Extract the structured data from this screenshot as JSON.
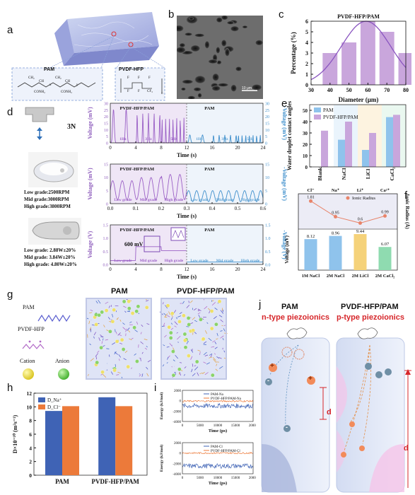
{
  "panels": {
    "a": {
      "letter": "a",
      "pam_label": "PAM",
      "pam_groups": [
        "CH₂",
        "CH",
        "CH₂",
        "CH",
        "CONH₂",
        "CONH₂"
      ],
      "pvdf_label": "PVDF-HFP",
      "pvdf_atoms": [
        "F",
        "F",
        "F",
        "F",
        "F",
        "CF₃"
      ],
      "subscripts": [
        "x",
        "y",
        "n"
      ]
    },
    "b": {
      "letter": "b",
      "scalebar": "10 μm"
    },
    "c": {
      "letter": "c",
      "chart_data": {
        "type": "bar",
        "title": "PVDF-HFP/PAM",
        "xlabel": "Diameter (μm)",
        "ylabel": "Percentage (%)",
        "categories": [
          40,
          50,
          60,
          70,
          80
        ],
        "values": [
          3,
          4,
          6,
          5,
          3
        ],
        "xlim": [
          30,
          80
        ],
        "ylim": [
          0,
          6
        ],
        "xticks": [
          "30",
          "40",
          "50",
          "60",
          "70",
          "80"
        ],
        "yticks": [
          "0",
          "1",
          "2",
          "3",
          "4",
          "5",
          "6"
        ],
        "bar_color": "#c9a6dc",
        "fit_color": "#8a55c0",
        "fit": "gaussian"
      }
    },
    "d": {
      "letter": "d",
      "load_label": "3N",
      "speed_lines": [
        "Low grade:2500RPM",
        "Mid grade:3000RPM",
        "High grade:3800RPM"
      ],
      "power_lines": [
        "Low grade:  2.88W±20%",
        "Mid grade:  3.84W±20%",
        "High grade: 4.80W±20%"
      ],
      "charts": [
        {
          "type": "line",
          "left_label": "PVDF-HFP/PAM",
          "right_label": "PAM",
          "ylabel_left": "Voltage (mV)",
          "ylabel_right": "-Voltage (mV)",
          "xlabel": "Time (s)",
          "xticks": [
            "0",
            "4",
            "8",
            "12",
            "16",
            "20",
            "24"
          ],
          "xlim": [
            0,
            24
          ],
          "ylim": [
            0,
            30
          ],
          "yticks": [
            "0",
            "5",
            "10",
            "15",
            "20",
            "25",
            "30"
          ],
          "freq_labels": [
            "1Hz",
            "3Hz",
            "5Hz",
            "1Hz",
            "3Hz",
            "5Hz"
          ]
        },
        {
          "type": "line",
          "left_label": "PVDF-HFP/PAM",
          "right_label": "PAM",
          "ylabel_left": "Voltage (mV)",
          "ylabel_right": "-Voltage (mV)",
          "xlabel": "Time (s)",
          "xticks": [
            "0.0",
            "0.1",
            "0.2",
            "0.3",
            "0.4",
            "0.5",
            "0.6"
          ],
          "xlim": [
            0,
            0.6
          ],
          "ylim": [
            0,
            15
          ],
          "yticks": [
            "0",
            "5",
            "10",
            "15"
          ],
          "grade_labels": [
            "Low grade",
            "Mid grade",
            "High grade",
            "Low grade",
            "Mid grade",
            "High grade"
          ]
        },
        {
          "type": "line",
          "left_label": "PVDF-HFP/PAM",
          "right_label": "PAM",
          "ylabel_left": "Voltage (V)",
          "ylabel_right": "-Voltage (V)",
          "xlabel": "Time (s)",
          "xticks": [
            "0",
            "4",
            "8",
            "12",
            "16",
            "20",
            "24"
          ],
          "xlim": [
            0,
            24
          ],
          "ylim": [
            0.0,
            1.5
          ],
          "yticks": [
            "0.0",
            "0.5",
            "1.0",
            "1.5"
          ],
          "annotation": "600 mV",
          "grade_labels": [
            "Low grade",
            "Mid grade",
            "High grade",
            "Low grade",
            "Mid grade",
            "High grade"
          ]
        }
      ]
    },
    "e": {
      "letter": "e",
      "chart_data": {
        "type": "bar",
        "ylabel": "Water droplet contact angles",
        "categories": [
          "Blank",
          "NaCl",
          "LiCl",
          "CaCl₂"
        ],
        "yticks": [
          "0",
          "10",
          "20",
          "30",
          "40",
          "50"
        ],
        "ylim": [
          0,
          55
        ],
        "series": [
          {
            "name": "PAM",
            "values": [
              0,
              24,
              15,
              44
            ],
            "color": "#8fc3ec"
          },
          {
            "name": "PVDF-HFP/PAM",
            "values": [
              32,
              40,
              30,
              46
            ],
            "color": "#c9a6dc"
          }
        ]
      }
    },
    "f": {
      "letter": "f",
      "chart_data": {
        "type": "bar",
        "ylabel": "Voltage (mV)",
        "ylabel_right": "Ionic Radius (Å)",
        "categories": [
          "1M NaCl",
          "2M NaCl",
          "2M LiCl",
          "2M CaCl₂"
        ],
        "values": [
          8.12,
          8.96,
          9.44,
          6.07
        ],
        "value_labels": [
          "8.12",
          "8.96",
          "9.44",
          "6.07"
        ],
        "bar_colors": [
          "#8fc3ec",
          "#8fc3ec",
          "#f5d27a",
          "#8fdbb0"
        ],
        "ions": [
          "Cl⁻",
          "Na⁺",
          "Li⁺",
          "Ca²⁺"
        ],
        "ionic_radius": [
          1.81,
          0.95,
          0.6,
          0.99
        ],
        "ionic_radius_labels": [
          "1.81",
          "0.95",
          "0.6",
          "0.99"
        ],
        "legend": "Ionic Radius",
        "line_color": "#e8846a"
      }
    },
    "g": {
      "letter": "g",
      "left_title": "PAM",
      "right_title": "PVDF-HFP/PAM",
      "legend": {
        "pam": "PAM",
        "pvdf": "PVDF-HFP",
        "cation": "Cation",
        "anion": "Anion"
      }
    },
    "h": {
      "letter": "h",
      "chart_data": {
        "type": "bar",
        "ylabel": "D×10⁻¹⁰ (m²s⁻¹)",
        "categories": [
          "PAM",
          "PVDF-HFP/PAM"
        ],
        "ylim": [
          0,
          12
        ],
        "yticks": [
          "0",
          "2",
          "4",
          "6",
          "8",
          "10",
          "12"
        ],
        "series": [
          {
            "name": "D_Na⁺",
            "values": [
              9.4,
              11.4
            ],
            "color": "#3f63b5"
          },
          {
            "name": "D_Cl⁻",
            "values": [
              10.1,
              10.1
            ],
            "color": "#ec7a3a"
          }
        ]
      }
    },
    "i": {
      "letter": "i",
      "charts": [
        {
          "type": "line",
          "xlabel": "Time (ps)",
          "ylabel": "Energy (kJ/mol)",
          "xlim": [
            0,
            20000
          ],
          "xticks": [
            "0",
            "5000",
            "10000",
            "15000",
            "20000"
          ],
          "ylim": [
            -4000,
            2000
          ],
          "yticks": [
            "-4000",
            "-2000",
            "0",
            "2000"
          ],
          "series": [
            {
              "name": "PAM-Na",
              "level": -1000,
              "color": "#3f63b5"
            },
            {
              "name": "PVDF-HFP/PAM-Na",
              "level": -80,
              "color": "#ec7a3a"
            }
          ]
        },
        {
          "type": "line",
          "xlabel": "Time (ps)",
          "ylabel": "Energy (kJ/mol)",
          "xlim": [
            0,
            20000
          ],
          "xticks": [
            "0",
            "5000",
            "10000",
            "15000",
            "20000"
          ],
          "ylim": [
            -4000,
            2000
          ],
          "yticks": [
            "-4000",
            "-2000",
            "0",
            "2000"
          ],
          "series": [
            {
              "name": "PAM-Cl",
              "level": -2500,
              "color": "#3f63b5"
            },
            {
              "name": "PVDF-HFP/PAM-Cl",
              "level": 0,
              "color": "#ec7a3a"
            }
          ]
        }
      ]
    },
    "j": {
      "letter": "j",
      "left_title": "PAM",
      "left_subtitle": "n-type piezoionics",
      "right_title": "PVDF-HFP/PAM",
      "right_subtitle": "p-type piezoionics",
      "d_label": "d",
      "plus": "+",
      "minus": "-"
    }
  }
}
